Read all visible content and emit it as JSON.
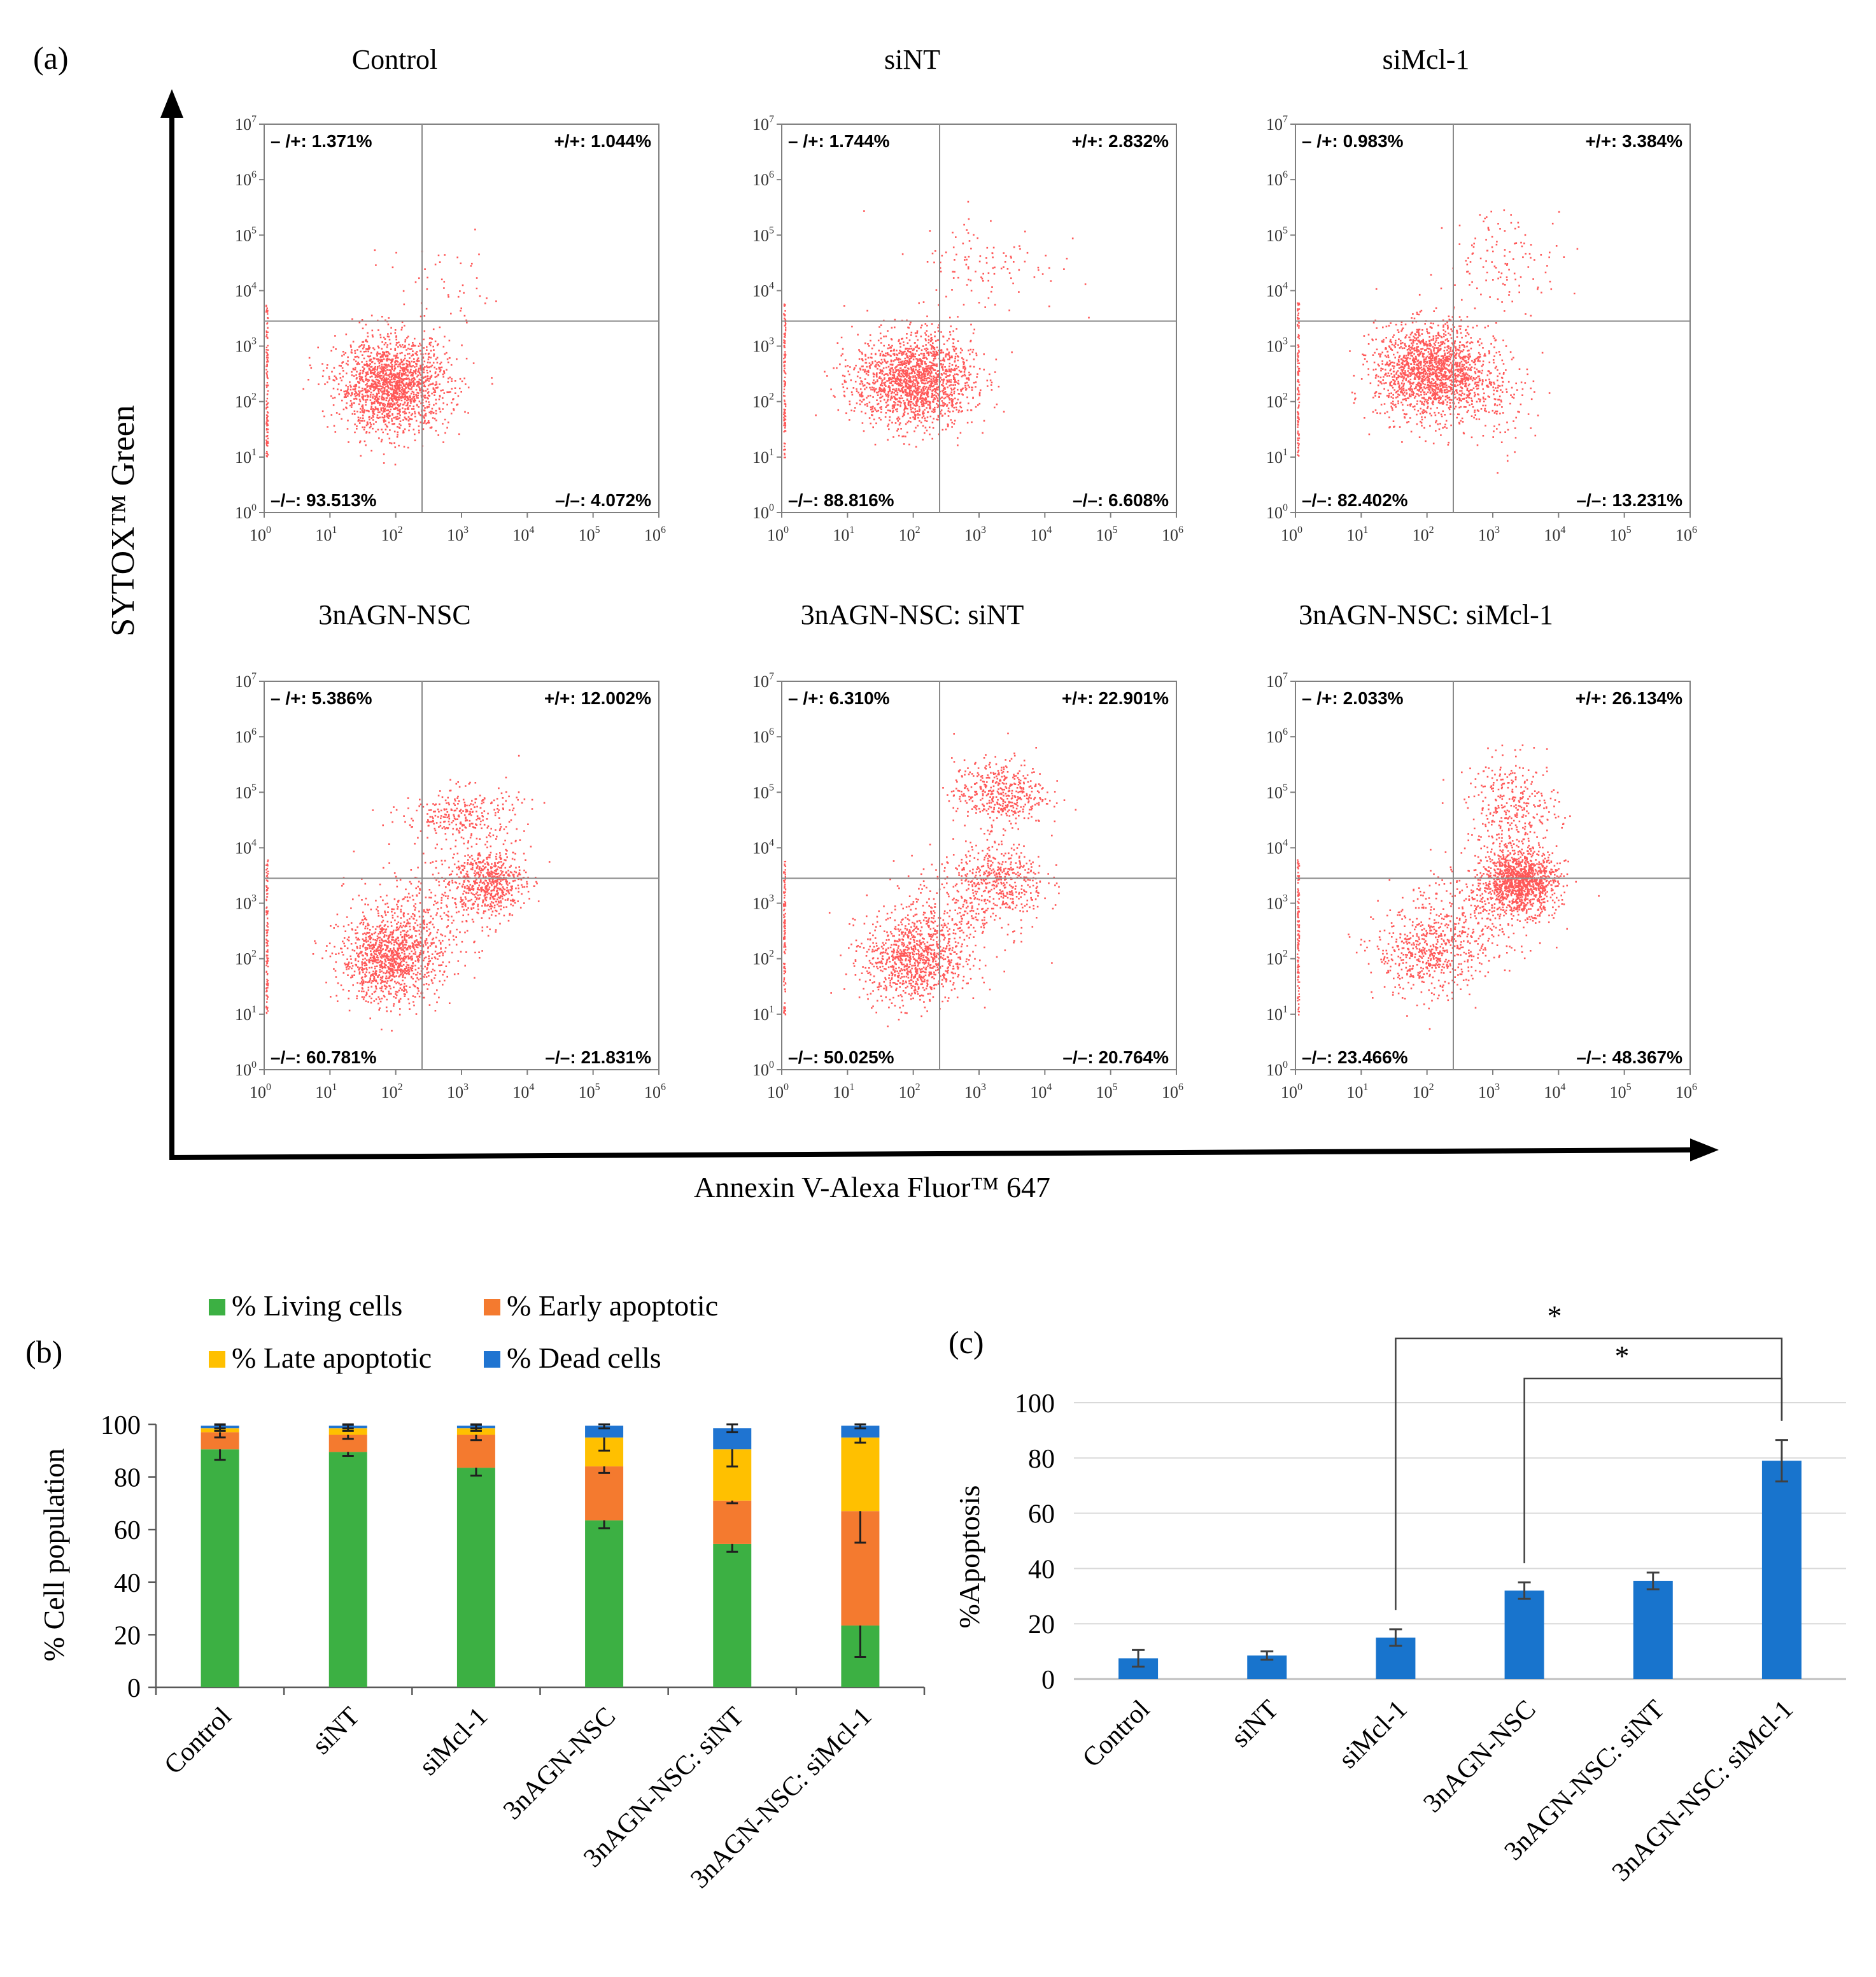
{
  "panel_labels": {
    "a": "(a)",
    "b": "(b)",
    "c": "(c)"
  },
  "colors": {
    "dot": "#ff2020",
    "living": "#3cb043",
    "early": "#f47a2f",
    "late": "#ffc000",
    "dead": "#1f74d1",
    "apoptosis_bar": "#1874cd"
  },
  "panel_a": {
    "x_axis_title": "Annexin V-Alexa Fluor™ 647",
    "y_axis_title": "SYTOX™ Green",
    "log_ticks": [
      {
        "base": "10",
        "exp": "0"
      },
      {
        "base": "10",
        "exp": "1"
      },
      {
        "base": "10",
        "exp": "2"
      },
      {
        "base": "10",
        "exp": "3"
      },
      {
        "base": "10",
        "exp": "4"
      },
      {
        "base": "10",
        "exp": "5"
      },
      {
        "base": "10",
        "exp": "6"
      }
    ],
    "y_log_ticks": [
      {
        "base": "10",
        "exp": "0"
      },
      {
        "base": "10",
        "exp": "1"
      },
      {
        "base": "10",
        "exp": "2"
      },
      {
        "base": "10",
        "exp": "3"
      },
      {
        "base": "10",
        "exp": "4"
      },
      {
        "base": "10",
        "exp": "5"
      },
      {
        "base": "10",
        "exp": "6"
      },
      {
        "base": "10",
        "exp": "7"
      }
    ],
    "gate_log": {
      "x": 2.4,
      "y": 3.45
    },
    "plots": [
      {
        "title": "Control",
        "q_tl": "– /+: 1.371%",
        "q_tr": "+/+: 1.044%",
        "q_bl": "–/–: 93.513%",
        "q_br": "–/–: 4.072%",
        "clusters": [
          {
            "cx": 1.95,
            "cy": 2.3,
            "sx": 0.42,
            "sy": 0.42,
            "n": 1700
          },
          {
            "cx": 2.7,
            "cy": 4.0,
            "sx": 0.55,
            "sy": 0.45,
            "n": 50
          }
        ]
      },
      {
        "title": "siNT",
        "q_tl": "– /+: 1.744%",
        "q_tr": "+/+: 2.832%",
        "q_bl": "–/–: 88.816%",
        "q_br": "–/–: 6.608%",
        "clusters": [
          {
            "cx": 2.0,
            "cy": 2.4,
            "sx": 0.45,
            "sy": 0.42,
            "n": 1700
          },
          {
            "cx": 3.1,
            "cy": 4.5,
            "sx": 0.55,
            "sy": 0.45,
            "n": 110
          }
        ]
      },
      {
        "title": "siMcl-1",
        "q_tl": "– /+: 0.983%",
        "q_tr": "+/+: 3.384%",
        "q_bl": "–/–: 82.402%",
        "q_br": "–/–: 13.231%",
        "clusters": [
          {
            "cx": 2.05,
            "cy": 2.55,
            "sx": 0.42,
            "sy": 0.42,
            "n": 1700
          },
          {
            "cx": 3.2,
            "cy": 4.6,
            "sx": 0.45,
            "sy": 0.45,
            "n": 120
          },
          {
            "cx": 3.0,
            "cy": 2.2,
            "sx": 0.3,
            "sy": 0.5,
            "n": 150
          }
        ]
      },
      {
        "title": "3nAGN-NSC",
        "q_tl": "– /+: 5.386%",
        "q_tr": "+/+: 12.002%",
        "q_bl": "–/–: 60.781%",
        "q_br": "–/–: 21.831%",
        "clusters": [
          {
            "cx": 1.9,
            "cy": 2.0,
            "sx": 0.38,
            "sy": 0.38,
            "n": 1100
          },
          {
            "cx": 3.4,
            "cy": 3.4,
            "sx": 0.28,
            "sy": 0.3,
            "n": 600
          },
          {
            "cx": 3.0,
            "cy": 4.6,
            "sx": 0.45,
            "sy": 0.25,
            "n": 300
          },
          {
            "cx": 2.4,
            "cy": 2.8,
            "sx": 0.5,
            "sy": 0.5,
            "n": 300
          }
        ]
      },
      {
        "title": "3nAGN-NSC: siNT",
        "q_tl": "– /+: 6.310%",
        "q_tr": "+/+: 22.901%",
        "q_bl": "–/–: 50.025%",
        "q_br": "–/–: 20.764%",
        "clusters": [
          {
            "cx": 2.0,
            "cy": 2.0,
            "sx": 0.38,
            "sy": 0.4,
            "n": 900
          },
          {
            "cx": 3.3,
            "cy": 5.0,
            "sx": 0.35,
            "sy": 0.3,
            "n": 450
          },
          {
            "cx": 3.3,
            "cy": 3.4,
            "sx": 0.35,
            "sy": 0.35,
            "n": 450
          },
          {
            "cx": 2.5,
            "cy": 2.8,
            "sx": 0.5,
            "sy": 0.5,
            "n": 250
          }
        ]
      },
      {
        "title": "3nAGN-NSC: siMcl-1",
        "q_tl": "– /+: 2.033%",
        "q_tr": "+/+: 26.134%",
        "q_bl": "–/–: 23.466%",
        "q_br": "–/–: 48.367%",
        "clusters": [
          {
            "cx": 3.4,
            "cy": 3.4,
            "sx": 0.28,
            "sy": 0.28,
            "n": 1200
          },
          {
            "cx": 2.0,
            "cy": 2.1,
            "sx": 0.4,
            "sy": 0.4,
            "n": 500
          },
          {
            "cx": 3.3,
            "cy": 4.7,
            "sx": 0.35,
            "sy": 0.45,
            "n": 350
          },
          {
            "cx": 2.6,
            "cy": 2.8,
            "sx": 0.5,
            "sy": 0.5,
            "n": 300
          }
        ]
      }
    ]
  },
  "chart_data": [
    {
      "type": "bar",
      "stacked": true,
      "panel": "(b)",
      "ylabel": "% Cell population",
      "ylim": [
        0,
        100
      ],
      "yticks": [
        "0",
        "20",
        "40",
        "60",
        "80",
        "100"
      ],
      "categories": [
        "Control",
        "siNT",
        "siMcl-1",
        "3nAGN-NSC",
        "3nAGN-NSC: siNT",
        "3nAGN-NSC: siMcl-1"
      ],
      "legend_position": "top",
      "series": [
        {
          "name": "% Living cells",
          "values": [
            90.5,
            89.5,
            83.5,
            63.5,
            54.5,
            23.5
          ],
          "errors": [
            4,
            1.5,
            3,
            3,
            3,
            12
          ]
        },
        {
          "name": "% Early apoptotic",
          "values": [
            6.5,
            6.5,
            12.5,
            20.5,
            16.5,
            43.5
          ],
          "errors": [
            2,
            1.5,
            2,
            2.5,
            1,
            12
          ]
        },
        {
          "name": "% Late apoptotic",
          "values": [
            1.5,
            2.5,
            2.5,
            11,
            19.5,
            28
          ],
          "errors": [
            1,
            1,
            1,
            5,
            6.5,
            2
          ]
        },
        {
          "name": "% Dead cells",
          "values": [
            1,
            1,
            1,
            4.5,
            8,
            4.5
          ],
          "errors": [
            1,
            1,
            1,
            1,
            1.5,
            1
          ]
        }
      ]
    },
    {
      "type": "bar",
      "panel": "(c)",
      "ylabel": "%Apoptosis",
      "ylim": [
        0,
        100
      ],
      "yticks": [
        "0",
        "20",
        "40",
        "60",
        "80",
        "100"
      ],
      "categories": [
        "Control",
        "siNT",
        "siMcl-1",
        "3nAGN-NSC",
        "3nAGN-NSC: siNT",
        "3nAGN-NSC: siMcl-1"
      ],
      "values": [
        7.5,
        8.5,
        15,
        32,
        35.5,
        79
      ],
      "errors": [
        3,
        1.5,
        3,
        3,
        3,
        7.5
      ],
      "significance": [
        {
          "from": "siMcl-1",
          "to": "3nAGN-NSC: siMcl-1",
          "label": "*"
        },
        {
          "from": "3nAGN-NSC",
          "to": "3nAGN-NSC: siMcl-1",
          "label": "*"
        }
      ]
    }
  ]
}
